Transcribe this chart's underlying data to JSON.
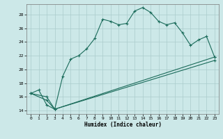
{
  "xlabel": "Humidex (Indice chaleur)",
  "bg_color": "#cce8e8",
  "grid_color": "#aacccc",
  "line_color": "#1a6b5a",
  "xlim": [
    -0.5,
    23.5
  ],
  "ylim": [
    13.5,
    29.5
  ],
  "xticks": [
    0,
    1,
    2,
    3,
    4,
    5,
    6,
    7,
    8,
    9,
    10,
    11,
    12,
    13,
    14,
    15,
    16,
    17,
    18,
    19,
    20,
    21,
    22,
    23
  ],
  "yticks": [
    14,
    16,
    18,
    20,
    22,
    24,
    26,
    28
  ],
  "series1_x": [
    0,
    1,
    2,
    3,
    4,
    5,
    6,
    7,
    8,
    9,
    10,
    11,
    12,
    13,
    14,
    15,
    16,
    17,
    18,
    19,
    20,
    21,
    22,
    23
  ],
  "series1_y": [
    16.5,
    17.0,
    14.8,
    14.2,
    19.0,
    21.5,
    22.0,
    23.0,
    24.5,
    27.3,
    27.0,
    26.5,
    26.7,
    28.5,
    29.0,
    28.3,
    27.0,
    26.5,
    26.8,
    25.3,
    23.5,
    24.3,
    24.8,
    21.8
  ],
  "series2_x": [
    0,
    2,
    3,
    23
  ],
  "series2_y": [
    16.5,
    16.0,
    14.2,
    21.8
  ],
  "series3_x": [
    0,
    2,
    3,
    23
  ],
  "series3_y": [
    16.5,
    15.5,
    14.2,
    21.3
  ]
}
